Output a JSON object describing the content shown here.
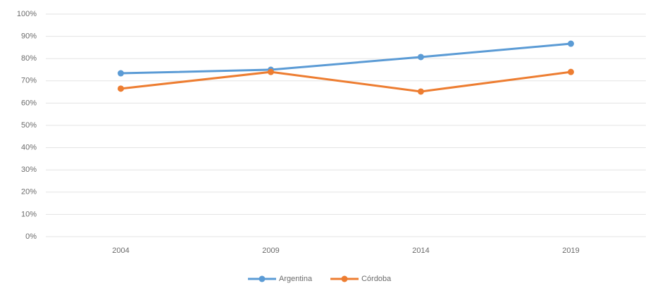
{
  "chart_data": {
    "type": "line",
    "categories": [
      "2004",
      "2009",
      "2014",
      "2019"
    ],
    "series": [
      {
        "name": "Argentina",
        "color": "#5b9bd5",
        "values": [
          73.4,
          75,
          80.7,
          86.7
        ]
      },
      {
        "name": "Córdoba",
        "color": "#ed7d31",
        "values": [
          66.5,
          74,
          65.2,
          74
        ]
      }
    ],
    "ylim": [
      0,
      100
    ],
    "yticks": [
      {
        "value": 0,
        "label": "0%"
      },
      {
        "value": 10,
        "label": "10%"
      },
      {
        "value": 20,
        "label": "20%"
      },
      {
        "value": 30,
        "label": "30%"
      },
      {
        "value": 40,
        "label": "40%"
      },
      {
        "value": 50,
        "label": "50%"
      },
      {
        "value": 60,
        "label": "60%"
      },
      {
        "value": 70,
        "label": "70%"
      },
      {
        "value": 80,
        "label": "80%"
      },
      {
        "value": 90,
        "label": "90%"
      },
      {
        "value": 100,
        "label": "100%"
      }
    ],
    "grid": true,
    "legend": "bottom"
  }
}
